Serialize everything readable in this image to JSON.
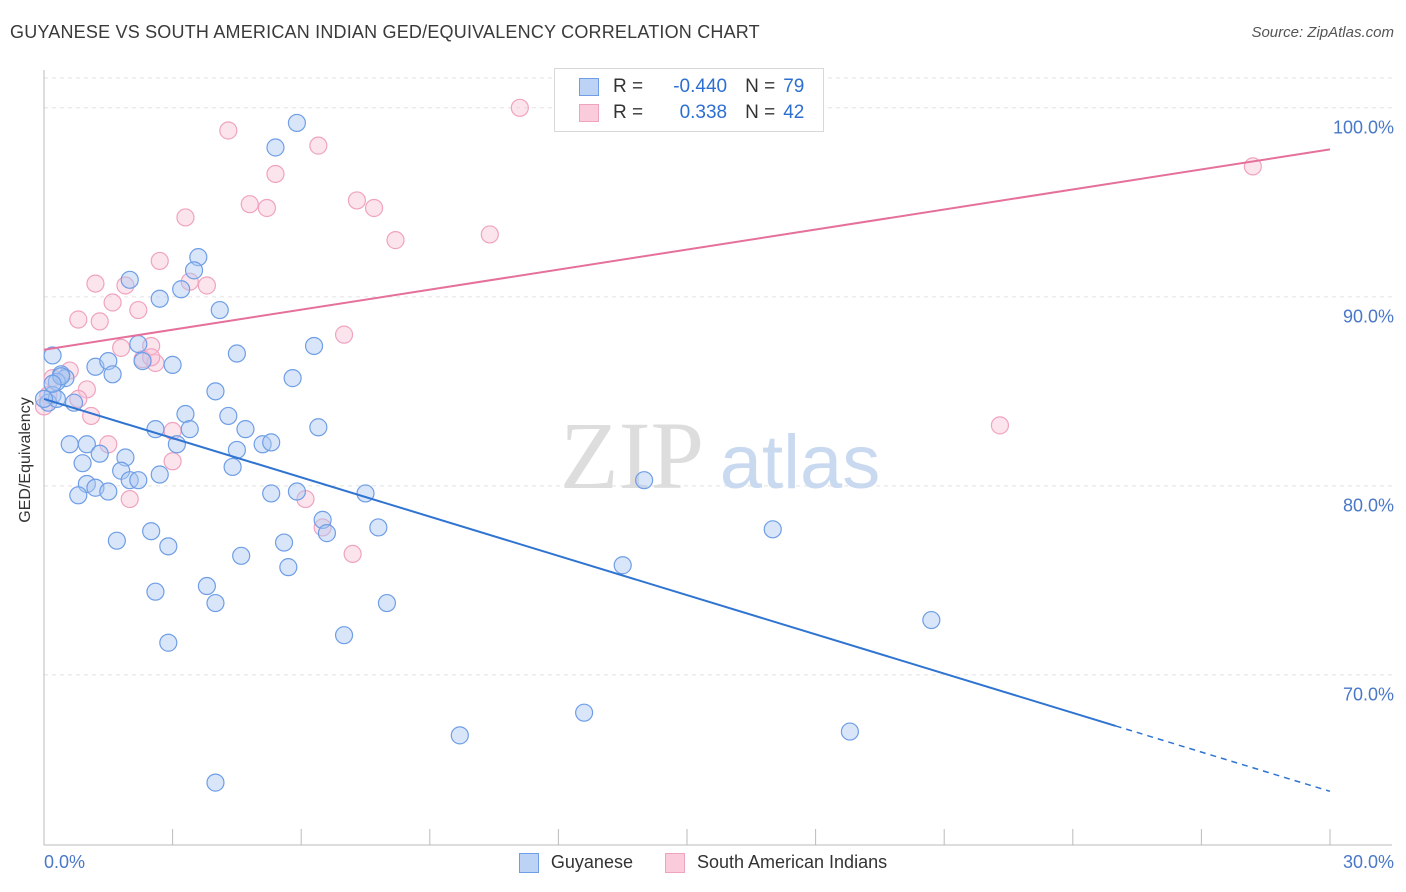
{
  "title": "GUYANESE VS SOUTH AMERICAN INDIAN GED/EQUIVALENCY CORRELATION CHART",
  "source": "Source: ZipAtlas.com",
  "watermark": {
    "zip": "ZIP",
    "atlas": "atlas"
  },
  "legend": {
    "r_label": "R =",
    "n_label": "N =",
    "guyanese": {
      "r": "-0.440",
      "n": "79"
    },
    "sai": {
      "r": "0.338",
      "n": "42"
    }
  },
  "chart_data": {
    "type": "scatter",
    "title": "GUYANESE VS SOUTH AMERICAN INDIAN GED/EQUIVALENCY CORRELATION CHART",
    "xlabel": "",
    "ylabel": "GED/Equivalency",
    "xlim": [
      0,
      30
    ],
    "ylim": [
      61.0,
      102.0
    ],
    "x_tick_labels": [
      "0.0%",
      "30.0%"
    ],
    "y_ticks": [
      70,
      80,
      90,
      100
    ],
    "y_tick_labels": [
      "70.0%",
      "80.0%",
      "90.0%",
      "100.0%"
    ],
    "grid": true,
    "legend_placement": "top-center",
    "colors": {
      "guyanese": "#6f9ee6",
      "sai": "#f0a3bf",
      "guyanese_line": "#2f74d0",
      "sai_line": "#e5709b"
    },
    "series": [
      {
        "name": "Guyanese",
        "r": -0.44,
        "n": 79,
        "trend": {
          "x0": 0.0,
          "y0": 84.6,
          "x1": 25.0,
          "y1": 67.3,
          "dash_to_x": 30.0
        },
        "points": [
          [
            5.9,
            99.2
          ],
          [
            5.4,
            97.9
          ],
          [
            3.6,
            92.1
          ],
          [
            3.5,
            91.4
          ],
          [
            2.0,
            90.9
          ],
          [
            3.2,
            90.4
          ],
          [
            2.7,
            89.9
          ],
          [
            4.1,
            89.3
          ],
          [
            6.3,
            87.4
          ],
          [
            2.2,
            87.5
          ],
          [
            0.2,
            86.9
          ],
          [
            4.5,
            87.0
          ],
          [
            1.2,
            86.3
          ],
          [
            1.5,
            86.6
          ],
          [
            2.3,
            86.6
          ],
          [
            3.0,
            86.4
          ],
          [
            1.6,
            85.9
          ],
          [
            0.4,
            85.9
          ],
          [
            0.5,
            85.7
          ],
          [
            5.8,
            85.7
          ],
          [
            0.3,
            85.5
          ],
          [
            0.2,
            84.8
          ],
          [
            4.0,
            85.0
          ],
          [
            0.1,
            84.4
          ],
          [
            0.7,
            84.4
          ],
          [
            3.3,
            83.8
          ],
          [
            4.3,
            83.7
          ],
          [
            0.3,
            84.6
          ],
          [
            6.4,
            83.1
          ],
          [
            2.6,
            83.0
          ],
          [
            3.4,
            83.0
          ],
          [
            4.7,
            83.0
          ],
          [
            0.6,
            82.2
          ],
          [
            1.0,
            82.2
          ],
          [
            3.1,
            82.2
          ],
          [
            5.1,
            82.2
          ],
          [
            5.3,
            82.3
          ],
          [
            4.5,
            81.9
          ],
          [
            1.3,
            81.7
          ],
          [
            0.9,
            81.2
          ],
          [
            1.9,
            81.5
          ],
          [
            4.4,
            81.0
          ],
          [
            1.8,
            80.8
          ],
          [
            2.0,
            80.3
          ],
          [
            2.2,
            80.3
          ],
          [
            2.7,
            80.6
          ],
          [
            1.0,
            80.1
          ],
          [
            1.2,
            79.9
          ],
          [
            1.5,
            79.7
          ],
          [
            0.8,
            79.5
          ],
          [
            5.3,
            79.6
          ],
          [
            5.9,
            79.7
          ],
          [
            7.5,
            79.6
          ],
          [
            14.0,
            80.3
          ],
          [
            6.5,
            78.2
          ],
          [
            7.8,
            77.8
          ],
          [
            2.5,
            77.6
          ],
          [
            6.6,
            77.5
          ],
          [
            1.7,
            77.1
          ],
          [
            5.6,
            77.0
          ],
          [
            2.9,
            76.8
          ],
          [
            4.6,
            76.3
          ],
          [
            13.5,
            75.8
          ],
          [
            17.0,
            77.7
          ],
          [
            5.7,
            75.7
          ],
          [
            3.8,
            74.7
          ],
          [
            2.6,
            74.4
          ],
          [
            4.0,
            73.8
          ],
          [
            8.0,
            73.8
          ],
          [
            20.7,
            72.9
          ],
          [
            7.0,
            72.1
          ],
          [
            2.9,
            71.7
          ],
          [
            12.6,
            68.0
          ],
          [
            9.7,
            66.8
          ],
          [
            18.8,
            67.0
          ],
          [
            4.0,
            64.3
          ],
          [
            0.0,
            84.6
          ],
          [
            0.4,
            85.8
          ],
          [
            0.2,
            85.4
          ]
        ]
      },
      {
        "name": "South American Indians",
        "r": 0.338,
        "n": 42,
        "trend": {
          "x0": 0.0,
          "y0": 87.2,
          "x1": 30.0,
          "y1": 97.8
        },
        "points": [
          [
            11.1,
            100.0
          ],
          [
            4.3,
            98.8
          ],
          [
            6.4,
            98.0
          ],
          [
            5.4,
            96.5
          ],
          [
            28.2,
            96.9
          ],
          [
            7.3,
            95.1
          ],
          [
            4.8,
            94.9
          ],
          [
            5.2,
            94.7
          ],
          [
            7.7,
            94.7
          ],
          [
            3.3,
            94.2
          ],
          [
            10.4,
            93.3
          ],
          [
            8.2,
            93.0
          ],
          [
            2.7,
            91.9
          ],
          [
            1.2,
            90.7
          ],
          [
            3.4,
            90.8
          ],
          [
            3.8,
            90.6
          ],
          [
            1.9,
            90.6
          ],
          [
            1.6,
            89.7
          ],
          [
            2.2,
            89.3
          ],
          [
            0.8,
            88.8
          ],
          [
            1.3,
            88.7
          ],
          [
            7.0,
            88.0
          ],
          [
            1.8,
            87.3
          ],
          [
            2.5,
            87.4
          ],
          [
            2.3,
            86.7
          ],
          [
            2.6,
            86.5
          ],
          [
            0.6,
            86.1
          ],
          [
            0.2,
            85.7
          ],
          [
            1.0,
            85.1
          ],
          [
            0.1,
            84.8
          ],
          [
            0.0,
            84.2
          ],
          [
            1.1,
            83.7
          ],
          [
            3.0,
            82.9
          ],
          [
            22.3,
            83.2
          ],
          [
            1.5,
            82.2
          ],
          [
            3.0,
            81.3
          ],
          [
            6.1,
            79.3
          ],
          [
            2.0,
            79.3
          ],
          [
            6.5,
            77.8
          ],
          [
            7.2,
            76.4
          ],
          [
            0.8,
            84.6
          ],
          [
            2.5,
            86.8
          ]
        ]
      }
    ]
  }
}
